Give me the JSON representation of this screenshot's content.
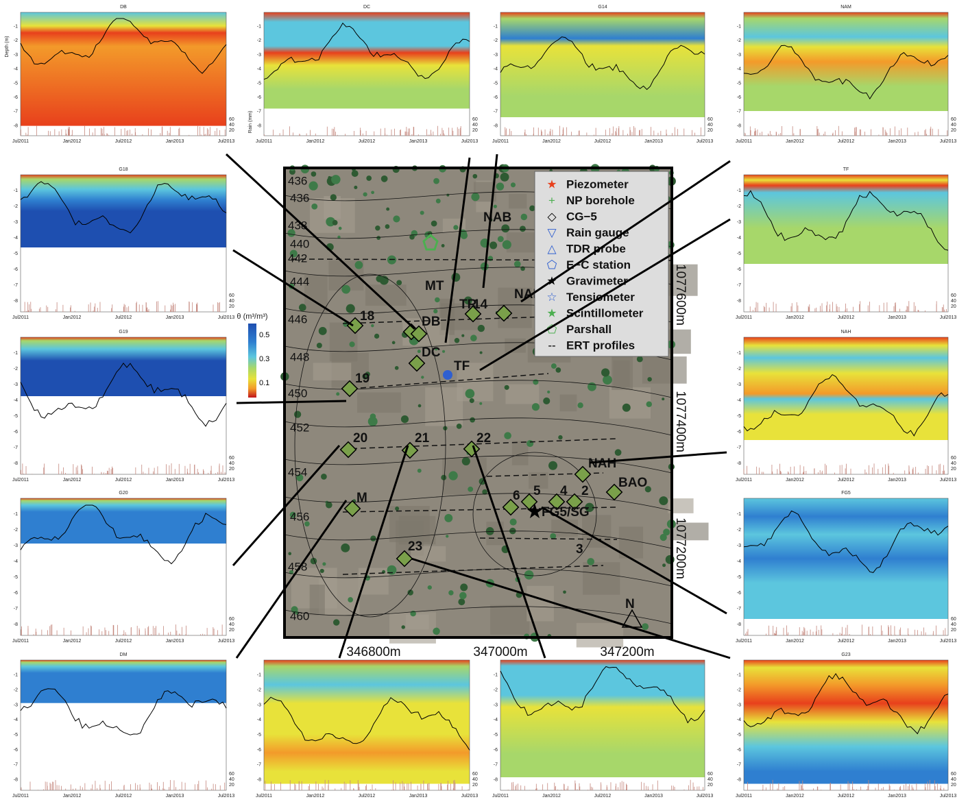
{
  "panel_titles": [
    "DB",
    "DC",
    "G14",
    "NAM",
    "G18",
    "TF",
    "G19",
    "NAH",
    "G20",
    "FG5",
    "DM",
    "G23"
  ],
  "depth_ticks": [
    -1,
    -2,
    -3,
    -4,
    -5,
    -6,
    -7,
    -8
  ],
  "time_ticks": [
    "Jul2011",
    "Jan2012",
    "Jul2012",
    "Jan2013",
    "Jul2013"
  ],
  "rain_ticks": [
    60,
    40,
    20
  ],
  "depth_label": "Depth (m)",
  "rain_label": "Rain (mm)",
  "colorbar": {
    "title": "θ (m³/m³)",
    "ticks": [
      0.5,
      0.3,
      0.1
    ]
  },
  "legend": [
    "Piezometer",
    "NP borehole",
    "CG−5",
    "Rain gauge",
    "TDR probe",
    "E−C station",
    "Gravimeter",
    "Tensiometer",
    "Scintillometer",
    "Parshall",
    "ERT profiles"
  ],
  "sites": [
    "NAB",
    "MT",
    "TR",
    "14",
    "NAM",
    "18",
    "DB",
    "DC",
    "TF",
    "19",
    "20",
    "21",
    "22",
    "NAH",
    "BAO",
    "6",
    "5",
    "4",
    "2",
    "FG5/SG",
    "M",
    "23",
    "3",
    "N"
  ],
  "contours": [
    436,
    436,
    438,
    440,
    442,
    444,
    446,
    448,
    450,
    452,
    454,
    456,
    458,
    460
  ],
  "easting": [
    "346800m",
    "347000m",
    "347200m"
  ],
  "northing": [
    "1077600m",
    "1077400m",
    "1077200m"
  ]
}
